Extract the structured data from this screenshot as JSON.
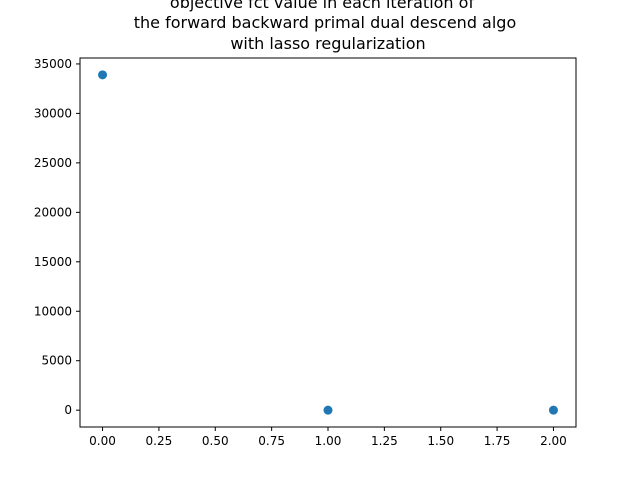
{
  "chart_data": {
    "type": "scatter",
    "title_lines": [
      "objective fct value in each iteration of",
      "the forward backward primal dual descend algo",
      "with lasso regularization"
    ],
    "xlabel": "",
    "ylabel": "",
    "x": [
      0,
      1,
      2
    ],
    "y": [
      33900,
      0,
      0
    ],
    "xlim": [
      -0.1,
      2.1
    ],
    "ylim": [
      -1700,
      35600
    ],
    "xticks": [
      0,
      0.25,
      0.5,
      0.75,
      1.0,
      1.25,
      1.5,
      1.75,
      2.0
    ],
    "xtick_labels": [
      "0.00",
      "0.25",
      "0.50",
      "0.75",
      "1.00",
      "1.25",
      "1.50",
      "1.75",
      "2.00"
    ],
    "yticks": [
      0,
      5000,
      10000,
      15000,
      20000,
      25000,
      30000,
      35000
    ],
    "ytick_labels": [
      "0",
      "5000",
      "10000",
      "15000",
      "20000",
      "25000",
      "30000",
      "35000"
    ],
    "grid": false,
    "marker_color": "#1f77b4"
  }
}
